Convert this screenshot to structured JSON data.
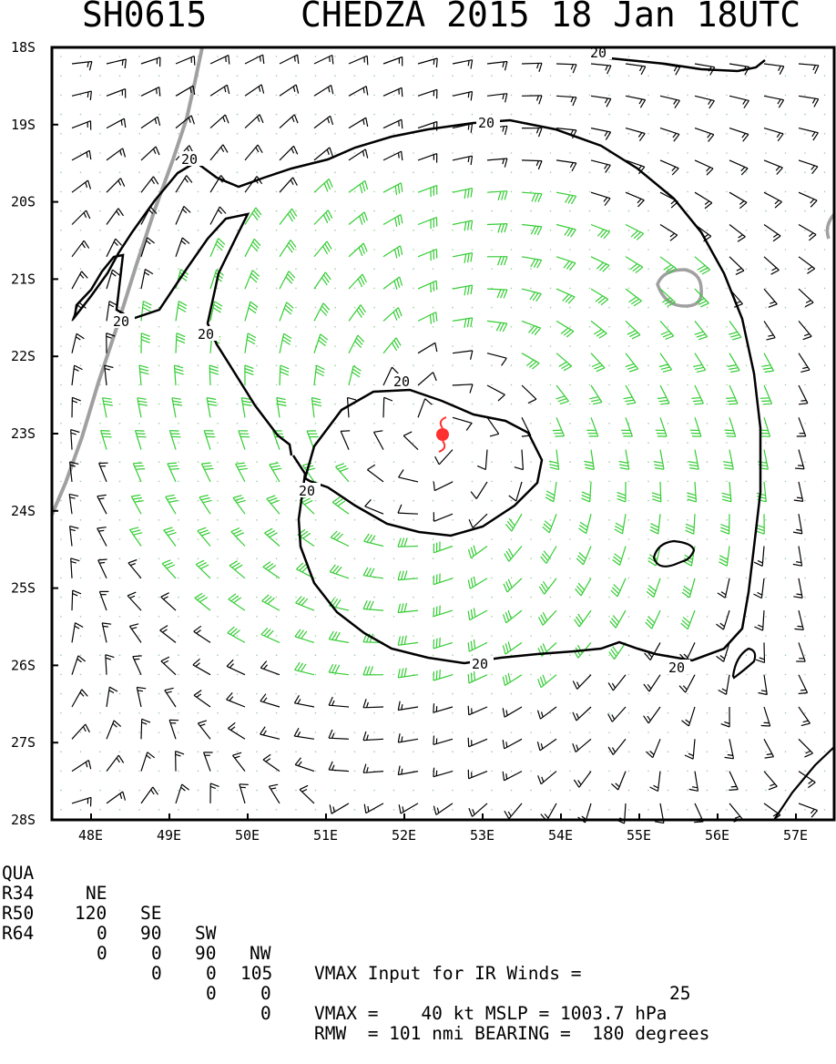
{
  "header": {
    "storm_id": "SH0615",
    "storm_title": "CHEDZA 2015 18 Jan 18UTC"
  },
  "map": {
    "lat_labels": [
      "18S",
      "19S",
      "20S",
      "21S",
      "22S",
      "23S",
      "24S",
      "25S",
      "26S",
      "27S",
      "28S"
    ],
    "lon_labels": [
      "48E",
      "49E",
      "50E",
      "51E",
      "52E",
      "53E",
      "54E",
      "55E",
      "56E",
      "57E"
    ],
    "contour_labels": [
      "20",
      "20",
      "20",
      "20",
      "20",
      "20",
      "20",
      "20"
    ],
    "storm_center": {
      "lat": -23.0,
      "lon": 52.5
    },
    "colors": {
      "frame": "#000000",
      "barb_black": "#000000",
      "barb_green": "#33cc33",
      "coast": "#a0a0a0",
      "contour": "#000000",
      "storm_symbol": "#ff3030"
    },
    "icons": [
      "wind-barb-icon",
      "tropical-storm-icon"
    ]
  },
  "info": {
    "row1": {
      "label": "QUA",
      "ne": "NE",
      "se": "SE",
      "sw": "SW",
      "nw": "NW",
      "text": "VMAX Input for IR Winds =",
      "value": "25"
    },
    "row2": {
      "label": "R34",
      "ne": "120",
      "se": "90",
      "sw": "90",
      "nw": "105"
    },
    "row3": {
      "label": "R50",
      "ne": "0",
      "se": "0",
      "sw": "0",
      "nw": "0",
      "text": "VMAX =    40 kt MSLP = 1003.7 hPa"
    },
    "row4": {
      "label": "R64",
      "ne": "0",
      "se": "0",
      "sw": "0",
      "nw": "0",
      "text": "RMW  = 101 nmi BEARING =  180 degrees"
    }
  }
}
